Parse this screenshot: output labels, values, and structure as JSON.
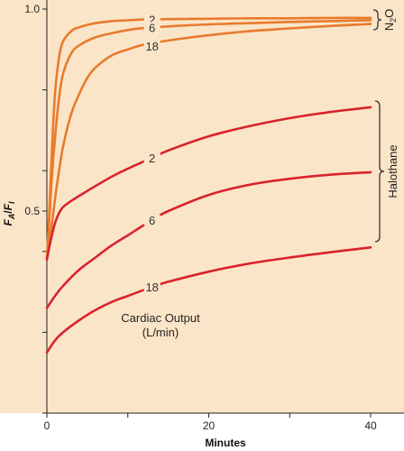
{
  "chart_data": {
    "type": "line",
    "xlabel": "Minutes",
    "ylabel_main": "F",
    "ylabel_sub": "A",
    "ylabel_sep": "/",
    "ylabel_main2": "F",
    "ylabel_sub2": "I",
    "xlim": [
      0,
      40
    ],
    "ylim": [
      0,
      1.0
    ],
    "x_ticks": [
      0,
      10,
      20,
      30,
      40
    ],
    "x_tick_labels": [
      "0",
      "",
      "20",
      "",
      "40"
    ],
    "y_ticks": [
      0,
      0.2,
      0.4,
      0.5,
      0.6,
      0.8,
      1.0
    ],
    "y_tick_labels": [
      "",
      "",
      "",
      "0.5",
      "",
      "",
      "1.0"
    ],
    "grid": false,
    "background": "#fbe5c8",
    "annotation": [
      "Cardiac Output",
      "(L/min)"
    ],
    "groups": [
      {
        "label_main": "N",
        "label_sub": "2",
        "label_end": "O",
        "color": "#e87b2d"
      },
      {
        "label_main": "Halothane",
        "color": "#d9232c"
      }
    ],
    "series": [
      {
        "group": 0,
        "label": "2",
        "color": "#e87b2d",
        "x": [
          0,
          0.3,
          0.6,
          1,
          1.5,
          2,
          3,
          4,
          6,
          8,
          10,
          12,
          15,
          20,
          25,
          30,
          35,
          40
        ],
        "y": [
          0.38,
          0.5,
          0.64,
          0.79,
          0.88,
          0.92,
          0.945,
          0.955,
          0.965,
          0.97,
          0.972,
          0.974,
          0.975,
          0.976,
          0.977,
          0.977,
          0.978,
          0.978
        ]
      },
      {
        "group": 0,
        "label": "6",
        "color": "#e87b2d",
        "x": [
          0,
          0.3,
          0.6,
          1,
          1.5,
          2,
          3,
          4,
          6,
          8,
          10,
          12,
          15,
          20,
          25,
          30,
          35,
          40
        ],
        "y": [
          0.38,
          0.48,
          0.58,
          0.68,
          0.78,
          0.84,
          0.89,
          0.91,
          0.93,
          0.94,
          0.948,
          0.953,
          0.957,
          0.962,
          0.965,
          0.968,
          0.97,
          0.972
        ]
      },
      {
        "group": 0,
        "label": "18",
        "color": "#e87b2d",
        "x": [
          0,
          0.5,
          1,
          1.5,
          2,
          3,
          4,
          5,
          6,
          8,
          10,
          12,
          15,
          20,
          25,
          30,
          35,
          40
        ],
        "y": [
          0.38,
          0.45,
          0.53,
          0.6,
          0.66,
          0.74,
          0.79,
          0.83,
          0.855,
          0.885,
          0.9,
          0.912,
          0.922,
          0.935,
          0.945,
          0.952,
          0.958,
          0.963
        ]
      },
      {
        "group": 1,
        "label": "2",
        "color": "#d9232c",
        "x": [
          0,
          0.5,
          1,
          1.5,
          2,
          3,
          5,
          8,
          10,
          13,
          15,
          20,
          25,
          30,
          35,
          40
        ],
        "y": [
          0.38,
          0.43,
          0.47,
          0.495,
          0.51,
          0.525,
          0.55,
          0.585,
          0.605,
          0.632,
          0.65,
          0.685,
          0.71,
          0.73,
          0.745,
          0.757
        ]
      },
      {
        "group": 1,
        "label": "6",
        "color": "#d9232c",
        "x": [
          0,
          1,
          2,
          4,
          6,
          8,
          10,
          13,
          15,
          20,
          25,
          30,
          35,
          40
        ],
        "y": [
          0.26,
          0.29,
          0.315,
          0.355,
          0.385,
          0.415,
          0.44,
          0.478,
          0.5,
          0.54,
          0.565,
          0.58,
          0.59,
          0.596
        ]
      },
      {
        "group": 1,
        "label": "18",
        "color": "#d9232c",
        "x": [
          0,
          1,
          2,
          4,
          6,
          8,
          10,
          13,
          15,
          20,
          25,
          30,
          35,
          40
        ],
        "y": [
          0.15,
          0.18,
          0.2,
          0.23,
          0.255,
          0.275,
          0.29,
          0.312,
          0.325,
          0.35,
          0.37,
          0.385,
          0.398,
          0.41
        ]
      }
    ]
  }
}
